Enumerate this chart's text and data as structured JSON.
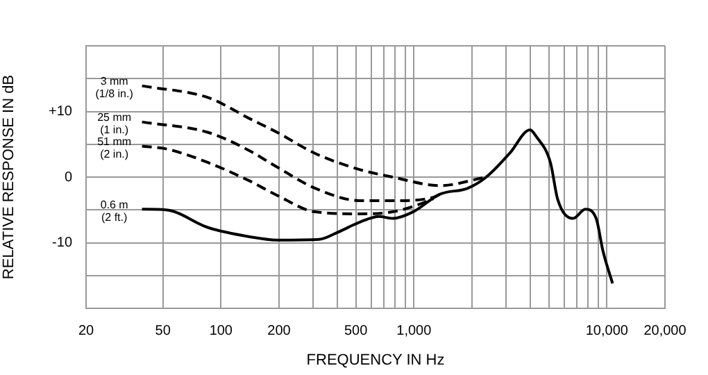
{
  "chart_data": {
    "type": "line",
    "xlabel": "FREQUENCY IN Hz",
    "ylabel": "RELATIVE RESPONSE IN dB",
    "log": "x",
    "grid": true,
    "legend": false,
    "marker": "none",
    "xlim": [
      20,
      20000
    ],
    "ylim": [
      -20,
      20
    ],
    "xticks": [
      20,
      50,
      100,
      200,
      {
        "value": 300,
        "label": null
      },
      {
        "value": 400,
        "label": null
      },
      500,
      {
        "value": 600,
        "label": null
      },
      {
        "value": 700,
        "label": null
      },
      {
        "value": 800,
        "label": null
      },
      {
        "value": 900,
        "label": null
      },
      {
        "value": 1000,
        "label": "1,000"
      },
      {
        "value": 2000,
        "label": null
      },
      {
        "value": 3000,
        "label": null
      },
      {
        "value": 4000,
        "label": null
      },
      {
        "value": 5000,
        "label": null
      },
      {
        "value": 6000,
        "label": null
      },
      {
        "value": 7000,
        "label": null
      },
      {
        "value": 8000,
        "label": null
      },
      {
        "value": 9000,
        "label": null
      },
      {
        "value": 10000,
        "label": "10,000"
      },
      {
        "value": 20000,
        "label": "20,000"
      }
    ],
    "yticks": [
      {
        "value": -20,
        "label": null
      },
      {
        "value": -15,
        "label": null
      },
      -10,
      {
        "value": -5,
        "label": null
      },
      0,
      {
        "value": 5,
        "label": null
      },
      {
        "value": 10,
        "label": "+10"
      },
      {
        "value": 15,
        "label": null
      },
      {
        "value": 20,
        "label": null
      }
    ],
    "series": [
      {
        "name": "3 mm\n(1/8 in.)",
        "color": "#000000",
        "line_style": "dashed",
        "x": [
          39,
          86,
          141,
          196,
          308,
          530,
          776,
          1365,
          2370
        ],
        "values": [
          13.9,
          12.1,
          8.9,
          6.8,
          3.6,
          1.1,
          0,
          -1.3,
          0
        ]
      },
      {
        "name": "25 mm\n(1 in.)",
        "color": "#000000",
        "line_style": "dashed",
        "x": [
          39,
          86,
          141,
          196,
          308,
          530,
          776,
          1260,
          1365
        ],
        "values": [
          8.4,
          6.8,
          4.0,
          1.5,
          -1.7,
          -3.6,
          -3.6,
          -3.1,
          -2.6
        ]
      },
      {
        "name": "51 mm\n(2 in.)",
        "color": "#000000",
        "line_style": "dashed",
        "x": [
          39,
          52,
          86,
          141,
          196,
          308,
          530,
          776,
          1030,
          1260
        ],
        "values": [
          4.7,
          4.3,
          2.2,
          -0.6,
          -2.8,
          -5.3,
          -5.6,
          -5.3,
          -4.3,
          -3.3
        ]
      },
      {
        "name": "0.6 m\n(2 ft.)",
        "color": "#000000",
        "line_style": "solid",
        "x": [
          39,
          52,
          86,
          141,
          196,
          322,
          404,
          530,
          660,
          776,
          990,
          1365,
          1900,
          2370,
          3130,
          4000,
          4300,
          5100,
          5560,
          6690,
          7740,
          8800,
          9550,
          10700
        ],
        "values": [
          -4.9,
          -5.0,
          -7.7,
          -9.1,
          -9.6,
          -9.5,
          -8.4,
          -6.8,
          -6.0,
          -6.3,
          -5.3,
          -2.6,
          -1.7,
          0,
          3.6,
          7.2,
          6.2,
          2.2,
          -3.4,
          -6.3,
          -4.9,
          -6.3,
          -11.3,
          -16.2
        ]
      }
    ]
  }
}
